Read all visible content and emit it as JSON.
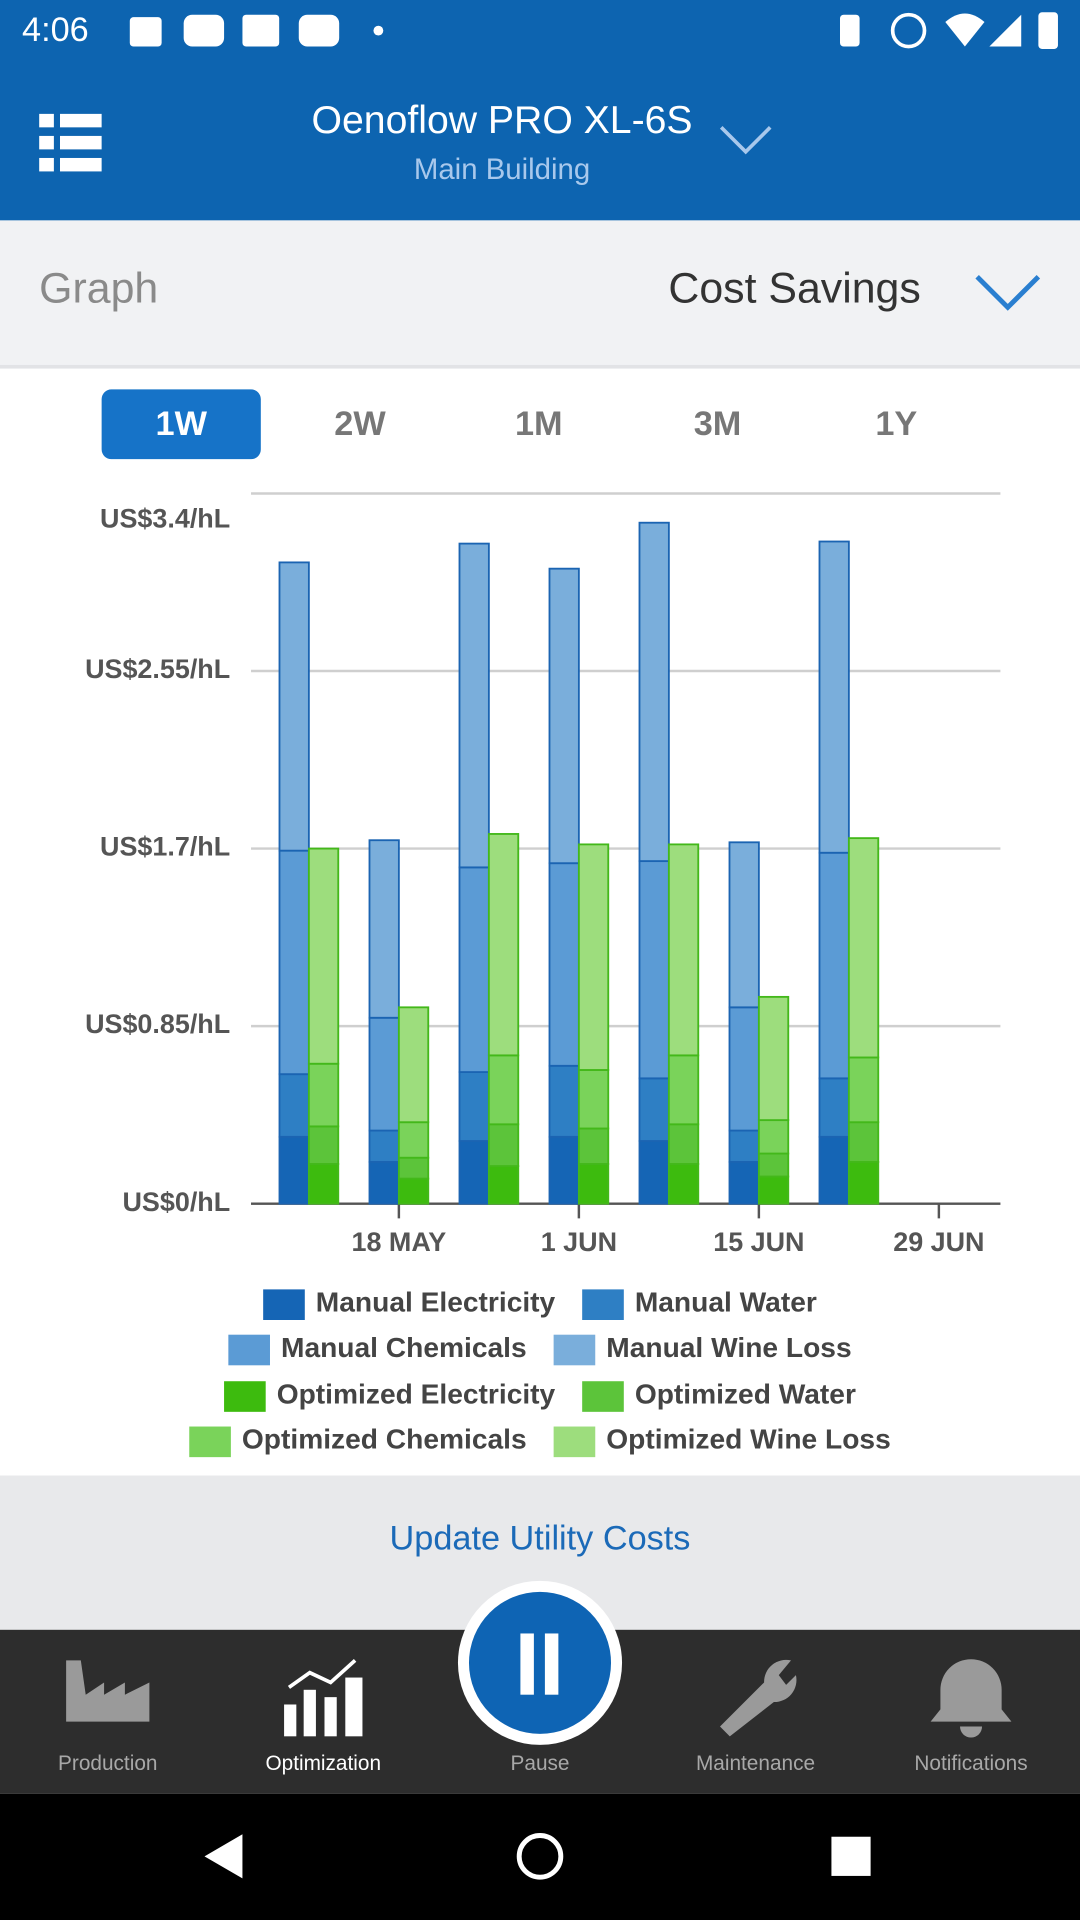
{
  "status_bar": {
    "time": "4:06"
  },
  "header": {
    "title": "Oenoflow PRO XL-6S",
    "subtitle": "Main Building"
  },
  "graph_selector": {
    "label": "Graph",
    "value": "Cost Savings"
  },
  "range_tabs": {
    "options": [
      "1W",
      "2W",
      "1M",
      "3M",
      "1Y"
    ],
    "selected": 0
  },
  "chart_data": {
    "type": "stacked_bar",
    "categories": [
      null,
      "18 MAY",
      null,
      "1 JUN",
      null,
      "15 JUN",
      null,
      "29 JUN"
    ],
    "ylim": [
      0,
      3.4
    ],
    "yticks": [
      {
        "value": 0,
        "label": "US$0/hL"
      },
      {
        "value": 0.85,
        "label": "US$0.85/hL"
      },
      {
        "value": 1.7,
        "label": "US$1.7/hL"
      },
      {
        "value": 2.55,
        "label": "US$2.55/hL"
      },
      {
        "value": 3.4,
        "label": "US$3.4/hL"
      }
    ],
    "grid": true,
    "series": [
      {
        "name": "Manual Electricity",
        "color": "#1565b5",
        "stack": 0,
        "values": [
          0.32,
          0.2,
          0.3,
          0.32,
          0.3,
          0.2,
          0.32,
          null
        ]
      },
      {
        "name": "Manual Water",
        "color": "#2e7fc4",
        "stack": 0,
        "values": [
          0.3,
          0.15,
          0.33,
          0.34,
          0.3,
          0.15,
          0.28,
          null
        ]
      },
      {
        "name": "Manual Chemicals",
        "color": "#5b9bd5",
        "stack": 0,
        "values": [
          1.07,
          0.54,
          0.98,
          0.97,
          1.04,
          0.59,
          1.08,
          null
        ]
      },
      {
        "name": "Manual Wine Loss",
        "color": "#7aaedb",
        "stack": 0,
        "values": [
          1.38,
          0.85,
          1.55,
          1.41,
          1.62,
          0.79,
          1.49,
          null
        ]
      },
      {
        "name": "Optimized Electricity",
        "color": "#3dbb0e",
        "stack": 1,
        "values": [
          0.19,
          0.12,
          0.18,
          0.19,
          0.19,
          0.13,
          0.2,
          null
        ]
      },
      {
        "name": "Optimized Water",
        "color": "#5cc43a",
        "stack": 1,
        "values": [
          0.18,
          0.1,
          0.2,
          0.17,
          0.19,
          0.11,
          0.19,
          null
        ]
      },
      {
        "name": "Optimized Chemicals",
        "color": "#7ad35a",
        "stack": 1,
        "values": [
          0.3,
          0.17,
          0.33,
          0.28,
          0.33,
          0.16,
          0.31,
          null
        ]
      },
      {
        "name": "Optimized Wine Loss",
        "color": "#9ddd7d",
        "stack": 1,
        "values": [
          1.03,
          0.55,
          1.06,
          1.08,
          1.01,
          0.59,
          1.05,
          null
        ]
      }
    ]
  },
  "actions": {
    "update_button": "Update Utility Costs"
  },
  "bottom_nav": {
    "items": [
      "Production",
      "Optimization",
      "Pause",
      "Maintenance",
      "Notifications"
    ],
    "active": 1
  }
}
